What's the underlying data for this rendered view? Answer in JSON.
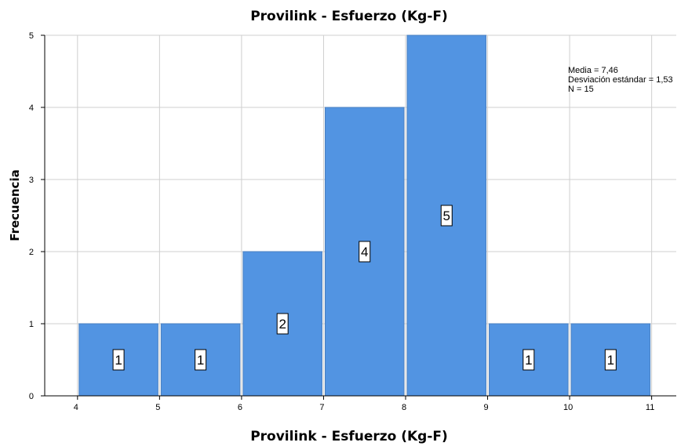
{
  "chart_data": {
    "type": "bar",
    "title": "Provilink - Esfuerzo (Kg-F)",
    "xlabel": "Provilink - Esfuerzo (Kg-F)",
    "ylabel": "Frecuencia",
    "bins": [
      [
        4,
        5
      ],
      [
        5,
        6
      ],
      [
        6,
        7
      ],
      [
        7,
        8
      ],
      [
        8,
        9
      ],
      [
        9,
        10
      ],
      [
        10,
        11
      ]
    ],
    "values": [
      1,
      1,
      2,
      4,
      5,
      1,
      1
    ],
    "xticks": [
      "4",
      "5",
      "6",
      "7",
      "8",
      "9",
      "10",
      "11"
    ],
    "yticks": [
      "0",
      "1",
      "2",
      "3",
      "4",
      "5"
    ],
    "xlim": [
      3.6,
      11.3
    ],
    "ylim": [
      0,
      5
    ],
    "grid": true,
    "bar_color": "#5294e2",
    "stats": [
      "Media = 7,46",
      "Desviación estándar = 1,53",
      "N = 15"
    ]
  }
}
